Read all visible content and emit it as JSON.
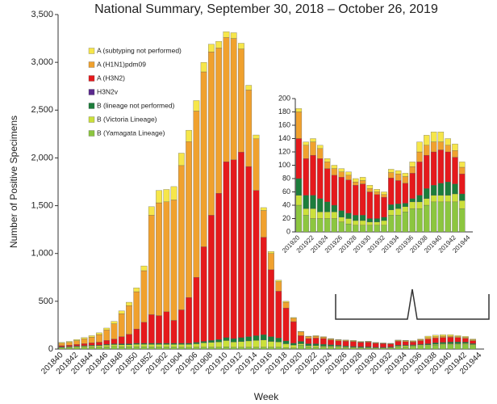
{
  "chart_data": [
    {
      "type": "bar",
      "stacked": true,
      "title": "National Summary, September 30, 2018 – October 26, 2019",
      "y_label": "Number of Positive Specimens",
      "x_label": "Week",
      "legend": "upper left",
      "categories": [
        "201840",
        null,
        "201842",
        null,
        "201844",
        null,
        "201846",
        null,
        "201848",
        null,
        "201850",
        null,
        "201852",
        null,
        "201902",
        null,
        "201904",
        null,
        "201906",
        null,
        "201908",
        null,
        "201910",
        null,
        "201912",
        null,
        "201914",
        null,
        "201916",
        null,
        "201918",
        null,
        "201920",
        null,
        "201922",
        null,
        "201924",
        null,
        "201926",
        null,
        "201928",
        null,
        "201930",
        null,
        "201932",
        null,
        "201934",
        null,
        "201936",
        null,
        "201938",
        null,
        "201940",
        null,
        "201942",
        null,
        "201944"
      ],
      "ylim": [
        0,
        3500
      ],
      "yticks": [
        0,
        500,
        {
          "value": 1000,
          "label": "1,000"
        },
        {
          "value": 1500,
          "label": "1,500"
        },
        {
          "value": 2000,
          "label": "2,000"
        },
        {
          "value": 2500,
          "label": "2,500"
        },
        {
          "value": 3000,
          "label": "3,000"
        },
        {
          "value": 3500,
          "label": "3,500"
        }
      ],
      "series": [
        {
          "name": "A (subtyping not performed)",
          "color": "#f6e64a",
          "values": [
            10,
            10,
            12,
            14,
            15,
            18,
            20,
            25,
            30,
            35,
            40,
            50,
            90,
            130,
            130,
            140,
            130,
            120,
            110,
            100,
            80,
            70,
            60,
            60,
            60,
            50,
            40,
            30,
            20,
            15,
            10,
            8,
            5,
            5,
            5,
            5,
            5,
            5,
            5,
            5,
            5,
            5,
            5,
            4,
            4,
            5,
            5,
            5,
            7,
            15,
            15,
            15,
            15,
            10,
            10,
            8,
            0
          ]
        },
        {
          "name": "A (H1N1)pdm09",
          "color": "#f0a12e",
          "values": [
            25,
            30,
            40,
            50,
            60,
            80,
            110,
            160,
            240,
            300,
            390,
            540,
            1040,
            1180,
            1150,
            1260,
            1510,
            1630,
            1740,
            1830,
            1710,
            1520,
            1300,
            1270,
            1080,
            800,
            540,
            280,
            170,
            100,
            60,
            35,
            40,
            20,
            20,
            15,
            10,
            10,
            8,
            7,
            5,
            5,
            5,
            4,
            4,
            8,
            10,
            10,
            10,
            15,
            15,
            15,
            12,
            10,
            10,
            10,
            0
          ]
        },
        {
          "name": "A (H3N2)",
          "color": "#e5191c",
          "values": [
            10,
            12,
            15,
            20,
            25,
            30,
            40,
            50,
            75,
            100,
            150,
            220,
            300,
            290,
            330,
            240,
            350,
            480,
            680,
            990,
            1310,
            1530,
            1840,
            1870,
            1940,
            1780,
            1520,
            1020,
            700,
            490,
            345,
            225,
            60,
            55,
            60,
            60,
            50,
            45,
            50,
            50,
            45,
            47,
            40,
            36,
            30,
            40,
            35,
            30,
            38,
            50,
            50,
            50,
            50,
            45,
            40,
            30,
            0
          ]
        },
        {
          "name": "H3N2v",
          "color": "#5b2a8e",
          "values": [
            0,
            0,
            0,
            0,
            0,
            0,
            0,
            0,
            0,
            0,
            0,
            0,
            0,
            0,
            0,
            0,
            0,
            0,
            0,
            0,
            0,
            0,
            1,
            1,
            1,
            0,
            0,
            0,
            0,
            0,
            0,
            0,
            0,
            0,
            0,
            0,
            0,
            0,
            0,
            0,
            0,
            0,
            0,
            0,
            0,
            0,
            0,
            0,
            0,
            0,
            0,
            0,
            0,
            0,
            0,
            0,
            0
          ]
        },
        {
          "name": "B (lineage not performed)",
          "color": "#1c7d3b",
          "values": [
            5,
            5,
            5,
            6,
            6,
            6,
            8,
            8,
            10,
            10,
            10,
            10,
            12,
            12,
            12,
            12,
            12,
            12,
            15,
            15,
            20,
            25,
            30,
            35,
            40,
            45,
            50,
            55,
            50,
            40,
            30,
            20,
            25,
            20,
            20,
            20,
            15,
            10,
            10,
            8,
            8,
            8,
            5,
            5,
            5,
            8,
            7,
            5,
            5,
            10,
            15,
            15,
            18,
            20,
            15,
            10,
            0
          ]
        },
        {
          "name": "B (Victoria Lineage)",
          "color": "#cbe03a",
          "values": [
            5,
            6,
            8,
            10,
            12,
            14,
            18,
            20,
            20,
            20,
            25,
            25,
            25,
            25,
            25,
            25,
            28,
            30,
            35,
            45,
            50,
            55,
            65,
            55,
            60,
            65,
            70,
            75,
            60,
            55,
            40,
            30,
            15,
            10,
            15,
            10,
            10,
            10,
            7,
            8,
            7,
            7,
            5,
            5,
            7,
            8,
            10,
            8,
            10,
            10,
            10,
            10,
            10,
            10,
            12,
            12,
            0
          ]
        },
        {
          "name": "B (Yamagata Lineage)",
          "color": "#8cc63f",
          "values": [
            15,
            17,
            20,
            20,
            22,
            22,
            24,
            27,
            25,
            25,
            25,
            25,
            23,
            23,
            23,
            23,
            20,
            18,
            20,
            20,
            20,
            20,
            24,
            19,
            19,
            20,
            20,
            20,
            20,
            20,
            15,
            12,
            40,
            25,
            20,
            20,
            20,
            20,
            15,
            12,
            10,
            10,
            10,
            10,
            10,
            25,
            25,
            30,
            35,
            35,
            40,
            45,
            45,
            45,
            45,
            35,
            0
          ]
        }
      ]
    },
    {
      "type": "bar",
      "stacked": true,
      "categories": [
        "201920",
        null,
        "201922",
        null,
        "201924",
        null,
        "201926",
        null,
        "201928",
        null,
        "201930",
        null,
        "201932",
        null,
        "201934",
        null,
        "201936",
        null,
        "201938",
        null,
        "201940",
        null,
        "201942",
        null,
        "201944"
      ],
      "ylim": [
        0,
        200
      ],
      "yticks": [
        0,
        20,
        40,
        60,
        80,
        100,
        120,
        140,
        160,
        180,
        200
      ],
      "series": [
        {
          "color": "#f6e64a",
          "values": [
            5,
            5,
            5,
            5,
            5,
            5,
            5,
            5,
            5,
            5,
            5,
            4,
            4,
            5,
            5,
            5,
            7,
            15,
            15,
            15,
            15,
            10,
            10,
            8,
            0
          ]
        },
        {
          "color": "#f0a12e",
          "values": [
            40,
            20,
            20,
            15,
            10,
            10,
            8,
            7,
            5,
            5,
            5,
            4,
            4,
            8,
            10,
            10,
            10,
            15,
            15,
            15,
            12,
            10,
            10,
            10,
            0
          ]
        },
        {
          "color": "#e5191c",
          "values": [
            60,
            55,
            60,
            60,
            50,
            45,
            50,
            50,
            45,
            47,
            40,
            36,
            30,
            40,
            35,
            30,
            38,
            50,
            50,
            50,
            50,
            45,
            40,
            30,
            0
          ]
        },
        {
          "color": "#5b2a8e",
          "values": [
            0,
            0,
            0,
            0,
            0,
            0,
            0,
            0,
            0,
            0,
            0,
            0,
            0,
            0,
            0,
            0,
            0,
            0,
            0,
            0,
            0,
            0,
            0,
            0,
            0
          ]
        },
        {
          "color": "#1c7d3b",
          "values": [
            25,
            20,
            20,
            20,
            15,
            10,
            10,
            8,
            8,
            8,
            5,
            5,
            5,
            8,
            7,
            5,
            5,
            10,
            15,
            15,
            18,
            20,
            15,
            10,
            0
          ]
        },
        {
          "color": "#cbe03a",
          "values": [
            15,
            10,
            15,
            10,
            10,
            10,
            7,
            8,
            7,
            7,
            5,
            5,
            7,
            8,
            10,
            8,
            10,
            10,
            10,
            10,
            10,
            10,
            12,
            12,
            0
          ]
        },
        {
          "color": "#8cc63f",
          "values": [
            40,
            25,
            20,
            20,
            20,
            20,
            15,
            12,
            10,
            10,
            10,
            10,
            10,
            25,
            25,
            30,
            35,
            35,
            40,
            45,
            45,
            45,
            45,
            35,
            0
          ]
        }
      ]
    }
  ]
}
